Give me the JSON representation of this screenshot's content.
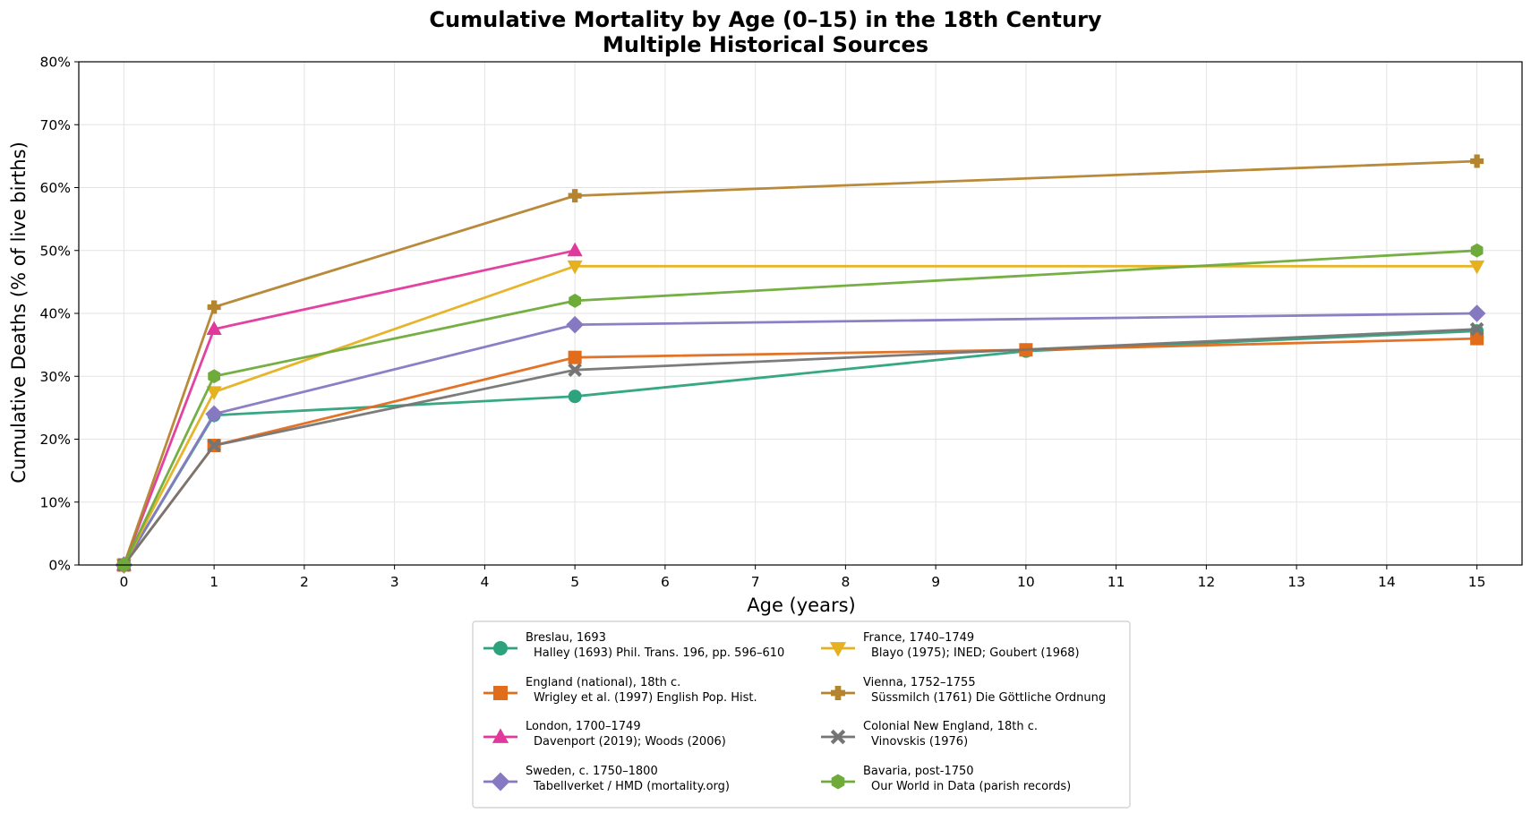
{
  "chart_data": {
    "type": "line",
    "title": "Cumulative Mortality by Age (0–15) in the 18th Century",
    "subtitle": "Multiple Historical Sources",
    "xlabel": "Age (years)",
    "ylabel": "Cumulative Deaths (% of live births)",
    "xlim": [
      -0.5,
      15.5
    ],
    "ylim": [
      0,
      80
    ],
    "xticks": [
      "0",
      "1",
      "2",
      "3",
      "4",
      "5",
      "6",
      "7",
      "8",
      "9",
      "10",
      "11",
      "12",
      "13",
      "14",
      "15"
    ],
    "yticks": [
      "0%",
      "10%",
      "20%",
      "30%",
      "40%",
      "50%",
      "60%",
      "70%",
      "80%"
    ],
    "grid": true,
    "legend_position": "bottom-center",
    "series": [
      {
        "name": "Breslau, 1693",
        "source": "Halley (1693) Phil. Trans. 196, pp. 596–610",
        "color": "#2ca27d",
        "marker": "circle",
        "x": [
          0,
          1,
          5,
          10,
          15
        ],
        "y": [
          0,
          23.8,
          26.8,
          34,
          37.2
        ]
      },
      {
        "name": "England (national), 18th c.",
        "source": "Wrigley et al. (1997) English Pop. Hist.",
        "color": "#e06c1c",
        "marker": "square",
        "x": [
          0,
          1,
          5,
          10,
          15
        ],
        "y": [
          0,
          19,
          33,
          34.2,
          36
        ]
      },
      {
        "name": "London, 1700–1749",
        "source": "Davenport (2019); Woods (2006)",
        "color": "#e0399b",
        "marker": "triangle-up",
        "x": [
          0,
          1,
          5
        ],
        "y": [
          0,
          37.5,
          50
        ]
      },
      {
        "name": "Sweden, c. 1750–1800",
        "source": "Tabellverket / HMD (mortality.org)",
        "color": "#8679c1",
        "marker": "diamond",
        "x": [
          0,
          1,
          5,
          15
        ],
        "y": [
          0,
          24,
          38.2,
          40
        ]
      },
      {
        "name": "France, 1740–1749",
        "source": "Blayo (1975); INED; Goubert (1968)",
        "color": "#e6b121",
        "marker": "triangle-down",
        "x": [
          0,
          1,
          5,
          15
        ],
        "y": [
          0,
          27.5,
          47.5,
          47.5
        ]
      },
      {
        "name": "Vienna, 1752–1755",
        "source": "Süssmilch (1761) Die Göttliche Ordnung",
        "color": "#b5842f",
        "marker": "plus",
        "x": [
          0,
          1,
          5,
          15
        ],
        "y": [
          0,
          41,
          58.7,
          64.2
        ]
      },
      {
        "name": "Colonial New England, 18th c.",
        "source": "Vinovskis (1976)",
        "color": "#757575",
        "marker": "x",
        "x": [
          0,
          1,
          5,
          15
        ],
        "y": [
          0,
          19,
          31,
          37.5
        ]
      },
      {
        "name": "Bavaria, post-1750",
        "source": "Our World in Data (parish records)",
        "color": "#6fab3a",
        "marker": "hexagon",
        "x": [
          0,
          1,
          5,
          15
        ],
        "y": [
          0,
          30,
          42,
          50
        ]
      }
    ]
  }
}
